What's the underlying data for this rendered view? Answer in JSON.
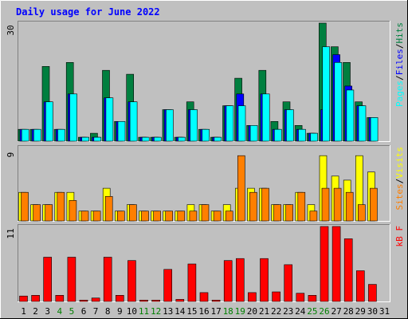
{
  "colors": {
    "background": "#c0c0c0",
    "plot_bg": "#c0c0c0",
    "title": "#0000ff",
    "weekday": "#000000",
    "weekend": "#007f00",
    "pages": "#00ffff",
    "files": "#0000ff",
    "hits": "#007f3f",
    "sites": "#ffff00",
    "visits": "#ff7f00",
    "kbytes": "#ff0000"
  },
  "chart_data": {
    "type": "bar",
    "title": "Daily usage for June 2022",
    "days": [
      "1",
      "2",
      "3",
      "4",
      "5",
      "6",
      "7",
      "8",
      "9",
      "10",
      "11",
      "12",
      "13",
      "14",
      "15",
      "16",
      "17",
      "18",
      "19",
      "20",
      "21",
      "22",
      "23",
      "24",
      "25",
      "26",
      "27",
      "28",
      "29",
      "30",
      "31"
    ],
    "weekend_days": [
      4,
      5,
      11,
      12,
      18,
      19,
      25,
      26
    ],
    "panels": [
      {
        "name": "hits-files-pages",
        "ymax": 30,
        "ymax_label": "30",
        "legend": [
          {
            "text": "Pages",
            "color_key": "pages"
          },
          {
            "text": "/",
            "color_key": "weekday"
          },
          {
            "text": "Files",
            "color_key": "files"
          },
          {
            "text": "/",
            "color_key": "weekday"
          },
          {
            "text": "Hits",
            "color_key": "hits"
          }
        ],
        "series": [
          {
            "name": "Hits",
            "color_key": "hits",
            "values": [
              3,
              3,
              19,
              3,
              20,
              1,
              2,
              18,
              5,
              17,
              1,
              1,
              8,
              1,
              10,
              3,
              1,
              9,
              16,
              4,
              18,
              5,
              10,
              4,
              2,
              30,
              24,
              20,
              10,
              6,
              0
            ]
          },
          {
            "name": "Files",
            "color_key": "files",
            "values": [
              3,
              3,
              10,
              3,
              12,
              1,
              1,
              11,
              5,
              10,
              1,
              1,
              8,
              1,
              8,
              3,
              1,
              9,
              12,
              4,
              12,
              3,
              8,
              3,
              2,
              8,
              22,
              14,
              9,
              6,
              0
            ]
          },
          {
            "name": "Pages",
            "color_key": "pages",
            "values": [
              3,
              3,
              10,
              3,
              12,
              1,
              1,
              11,
              5,
              10,
              1,
              1,
              8,
              1,
              8,
              3,
              1,
              9,
              9,
              4,
              12,
              3,
              8,
              3,
              2,
              24,
              20,
              13,
              9,
              6,
              0
            ]
          }
        ]
      },
      {
        "name": "visits-sites",
        "ymax": 9,
        "ymax_label": "9",
        "legend": [
          {
            "text": "Sites",
            "color_key": "visits"
          },
          {
            "text": "/",
            "color_key": "weekday"
          },
          {
            "text": "Visits",
            "color_key": "sites"
          }
        ],
        "series": [
          {
            "name": "Visits",
            "color_key": "sites",
            "values": [
              3.5,
              2,
              2,
              3.5,
              3.5,
              1.2,
              1.2,
              4,
              1.2,
              2,
              1.2,
              1.2,
              1.2,
              1.2,
              2,
              2,
              1.2,
              2,
              4,
              4,
              4,
              2,
              2,
              3.5,
              2,
              8,
              5.5,
              5,
              8,
              6,
              0
            ]
          },
          {
            "name": "Sites",
            "color_key": "visits",
            "values": [
              3.5,
              2,
              2,
              3.5,
              2.5,
              1.2,
              1.2,
              3,
              1.2,
              2,
              1.2,
              1.2,
              1.2,
              1.2,
              1.2,
              2,
              1.2,
              1.2,
              8,
              3.5,
              4,
              2,
              2,
              3.5,
              1.2,
              4,
              4,
              3.5,
              2,
              4,
              0
            ]
          }
        ]
      },
      {
        "name": "kbytes",
        "ymax": 11,
        "ymax_label": "11",
        "legend": [
          {
            "text": "kB F",
            "color_key": "kbytes"
          }
        ],
        "series": [
          {
            "name": "kB F",
            "color_key": "kbytes",
            "values": [
              0.8,
              0.9,
              6.5,
              0.9,
              6.5,
              0.2,
              0.5,
              6.5,
              0.9,
              6,
              0.2,
              0.2,
              4.7,
              0.3,
              5.5,
              1.3,
              0.2,
              6,
              6.3,
              1.3,
              6.3,
              1.4,
              5.4,
              1.2,
              0.9,
              11,
              11,
              9.2,
              4.5,
              2.5,
              0
            ]
          }
        ]
      }
    ]
  }
}
